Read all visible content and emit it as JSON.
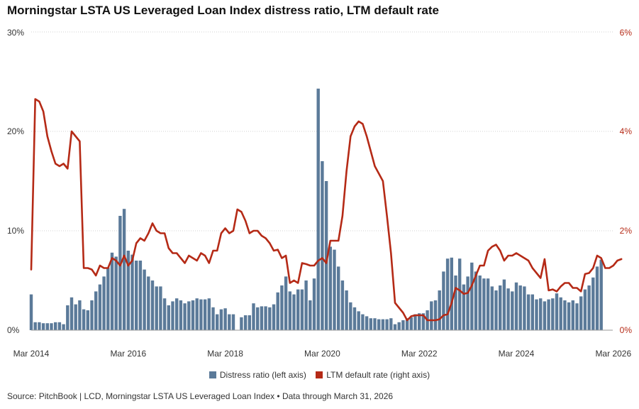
{
  "chart_data": {
    "type": "bar+line",
    "title": "Morningstar LSTA US Leveraged Loan Index distress ratio, LTM default rate",
    "x_tick_labels": [
      "Mar 2014",
      "Mar 2016",
      "Mar 2018",
      "Mar 2020",
      "Mar 2022",
      "Mar 2024",
      "Mar 2026"
    ],
    "x_ticks_month_index": [
      0,
      24,
      48,
      72,
      96,
      120,
      144
    ],
    "left_axis": {
      "ticks": [
        "0%",
        "10%",
        "20%",
        "30%"
      ],
      "values": [
        0,
        10,
        20,
        30
      ],
      "ylim": [
        0,
        30
      ]
    },
    "right_axis": {
      "ticks": [
        "0%",
        "2%",
        "4%",
        "6%"
      ],
      "values": [
        0,
        2,
        4,
        6
      ],
      "ylim": [
        0,
        6
      ]
    },
    "series": [
      {
        "name": "Distress ratio (left axis)",
        "type": "bar",
        "axis": "left",
        "color": "#5b7a99",
        "start": "Mar 2014",
        "values": [
          3.6,
          0.8,
          0.8,
          0.7,
          0.7,
          0.7,
          0.8,
          0.8,
          0.6,
          2.5,
          3.3,
          2.6,
          3.0,
          2.1,
          2.0,
          3.0,
          3.9,
          4.6,
          5.4,
          6.3,
          7.8,
          7.4,
          11.5,
          12.2,
          8.0,
          7.6,
          7.0,
          7.0,
          6.1,
          5.4,
          5.0,
          4.4,
          4.4,
          3.2,
          2.5,
          2.9,
          3.2,
          3.0,
          2.7,
          2.9,
          3.0,
          3.2,
          3.1,
          3.1,
          3.2,
          2.3,
          1.6,
          2.1,
          2.2,
          1.6,
          1.6,
          null,
          1.3,
          1.5,
          1.5,
          2.7,
          2.3,
          2.4,
          2.4,
          2.3,
          2.6,
          3.8,
          4.5,
          5.4,
          3.9,
          3.6,
          4.1,
          4.1,
          5.0,
          3.0,
          5.2,
          24.3,
          17.0,
          15.0,
          8.4,
          8.1,
          6.4,
          5.0,
          4.0,
          2.8,
          2.3,
          1.9,
          1.6,
          1.4,
          1.2,
          1.2,
          1.1,
          1.1,
          1.1,
          1.2,
          0.6,
          0.8,
          1.0,
          1.2,
          1.3,
          1.6,
          1.7,
          1.7,
          2.0,
          2.9,
          3.0,
          4.0,
          5.9,
          7.2,
          7.3,
          5.5,
          7.2,
          4.6,
          5.4,
          6.8,
          5.9,
          5.5,
          5.2,
          5.2,
          4.4,
          4.0,
          4.5,
          5.1,
          4.2,
          3.9,
          4.8,
          4.5,
          4.4,
          3.6,
          3.6,
          3.1,
          3.2,
          2.9,
          3.1,
          3.2,
          3.7,
          3.3,
          3.0,
          2.8,
          3.0,
          2.7,
          3.4,
          4.1,
          4.5,
          5.3,
          6.4,
          7.1
        ]
      },
      {
        "name": "LTM default rate (right axis)",
        "type": "line",
        "axis": "right",
        "color": "#b52a16",
        "start": "Mar 2014",
        "values": [
          1.22,
          4.65,
          4.6,
          4.4,
          3.9,
          3.6,
          3.35,
          3.3,
          3.35,
          3.25,
          4.0,
          3.9,
          3.8,
          1.25,
          1.25,
          1.22,
          1.1,
          1.3,
          1.25,
          1.25,
          1.45,
          1.4,
          1.3,
          1.5,
          1.3,
          1.4,
          1.75,
          1.85,
          1.8,
          1.95,
          2.15,
          2.0,
          1.95,
          1.95,
          1.65,
          1.55,
          1.55,
          1.45,
          1.35,
          1.5,
          1.45,
          1.4,
          1.55,
          1.5,
          1.35,
          1.6,
          1.6,
          1.95,
          2.05,
          1.95,
          2.0,
          2.43,
          2.38,
          2.2,
          1.95,
          2.0,
          2.0,
          1.9,
          1.85,
          1.75,
          1.6,
          1.62,
          1.45,
          1.5,
          0.95,
          1.0,
          0.95,
          1.35,
          1.33,
          1.3,
          1.3,
          1.4,
          1.45,
          1.35,
          1.8,
          1.8,
          1.8,
          2.3,
          3.2,
          3.9,
          4.1,
          4.2,
          4.15,
          3.9,
          3.6,
          3.3,
          3.15,
          3.0,
          2.3,
          1.55,
          0.55,
          0.45,
          0.35,
          0.2,
          0.28,
          0.3,
          0.3,
          0.3,
          0.2,
          0.2,
          0.2,
          0.22,
          0.3,
          0.32,
          0.55,
          0.85,
          0.8,
          0.73,
          0.75,
          0.9,
          1.1,
          1.3,
          1.3,
          1.6,
          1.68,
          1.72,
          1.6,
          1.4,
          1.5,
          1.5,
          1.55,
          1.5,
          1.45,
          1.4,
          1.25,
          1.15,
          1.05,
          1.43,
          0.8,
          0.82,
          0.78,
          0.88,
          0.95,
          0.95,
          0.85,
          0.85,
          0.78,
          1.13,
          1.15,
          1.25,
          1.5,
          1.45,
          1.25,
          1.25,
          1.3,
          1.4,
          1.43
        ]
      }
    ]
  },
  "legend": {
    "bar_label": "Distress ratio (left axis)",
    "line_label": "LTM default rate (right axis)",
    "bar_color": "#5b7a99",
    "line_color": "#b52a16"
  },
  "source": "Source: PitchBook | LCD, Morningstar LSTA US Leveraged Loan Index • Data through March 31, 2026"
}
